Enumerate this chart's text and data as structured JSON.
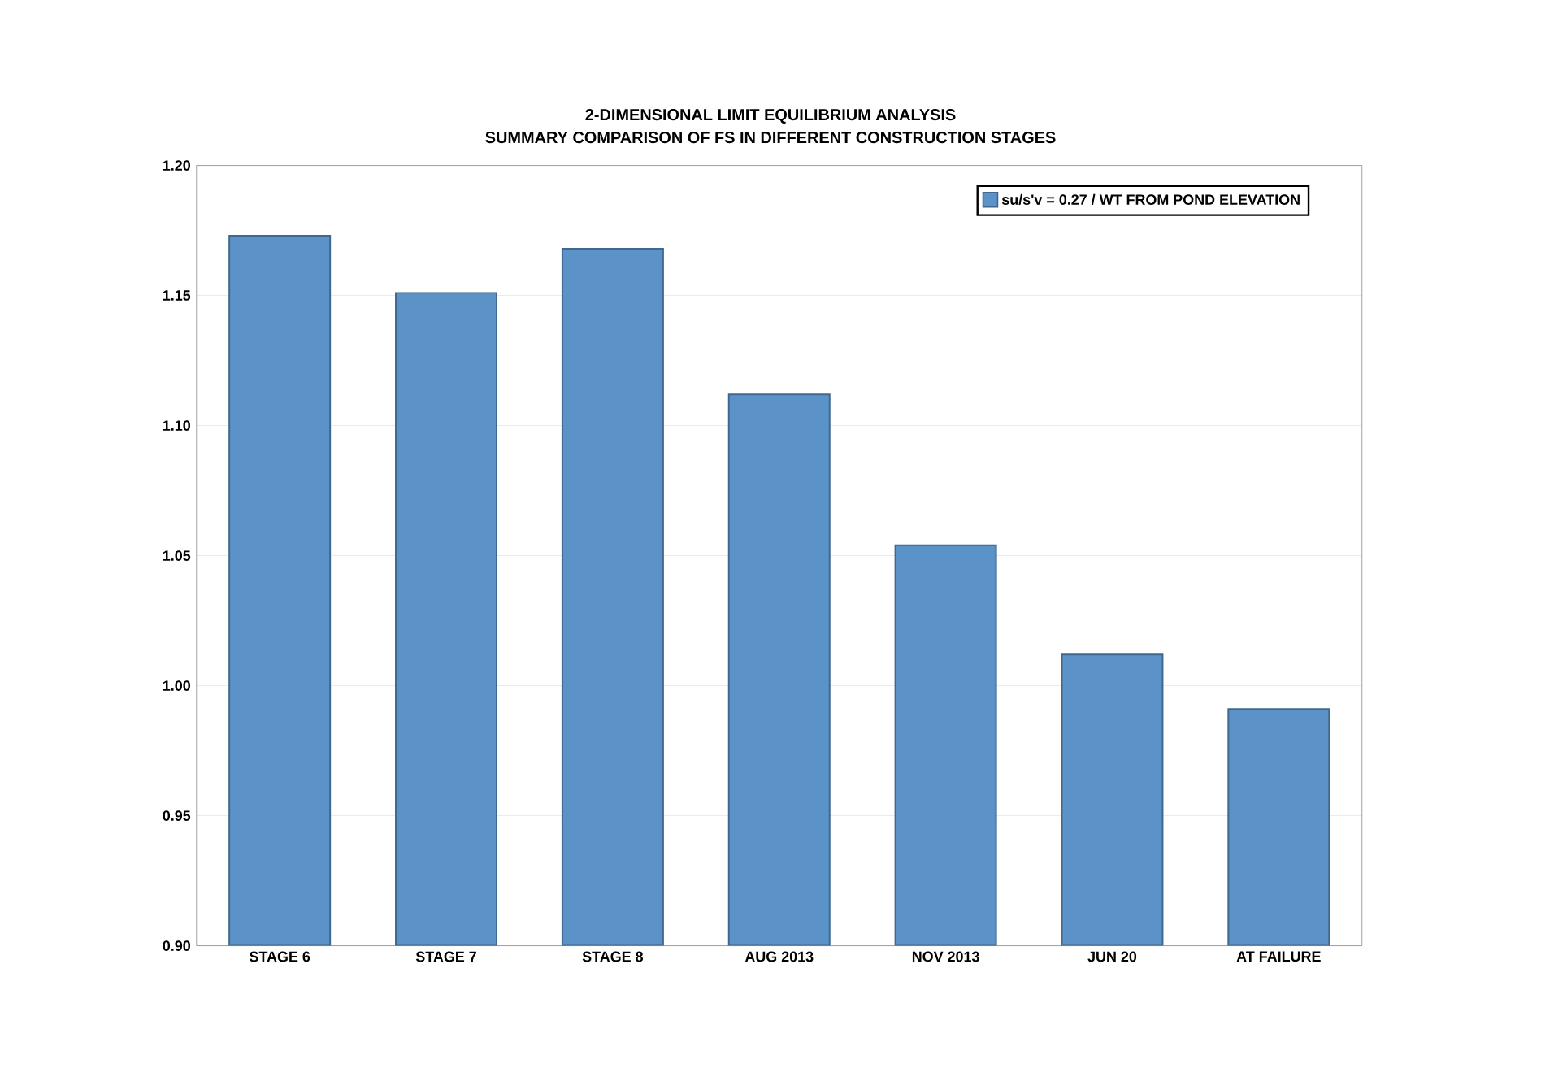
{
  "chart_data": {
    "type": "bar",
    "title": "2-DIMENSIONAL LIMIT EQUILIBRIUM ANALYSIS",
    "subtitle": "SUMMARY COMPARISON OF FS IN DIFFERENT CONSTRUCTION STAGES",
    "categories": [
      "STAGE 6",
      "STAGE 7",
      "STAGE 8",
      "AUG 2013",
      "NOV 2013",
      "JUN 20",
      "AT FAILURE"
    ],
    "series": [
      {
        "name": "su/s'v = 0.27 / WT FROM POND ELEVATION",
        "color": "#5b93c9",
        "values": [
          1.173,
          1.151,
          1.168,
          1.112,
          1.054,
          1.012,
          0.991
        ]
      }
    ],
    "ylim": [
      0.9,
      1.2
    ],
    "yticks": [
      {
        "value": 0.9,
        "label": "0.90"
      },
      {
        "value": 0.95,
        "label": "0.95"
      },
      {
        "value": 1.0,
        "label": "1.00"
      },
      {
        "value": 1.05,
        "label": "1.05"
      },
      {
        "value": 1.1,
        "label": "1.10"
      },
      {
        "value": 1.15,
        "label": "1.15"
      },
      {
        "value": 1.2,
        "label": "1.20"
      }
    ],
    "grid": "y",
    "legend": "top right"
  }
}
